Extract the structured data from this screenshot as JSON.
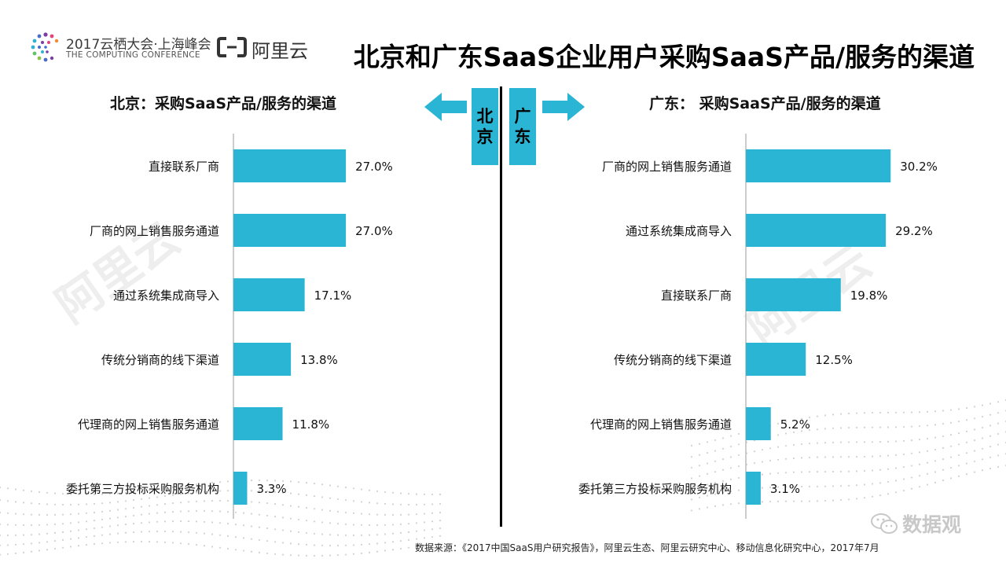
{
  "header": {
    "conference_name": "2017云栖大会·上海峰会",
    "conference_sub": "THE COMPUTING CONFERENCE",
    "brand": "阿里云",
    "title": "北京和广东SaaS企业用户采购SaaS产品/服务的渠道"
  },
  "divider": {
    "left_city": [
      "北",
      "京"
    ],
    "right_city": [
      "广",
      "东"
    ]
  },
  "colors": {
    "bar": "#29b5d3",
    "accent": "#29b5d3",
    "divider": "#000000"
  },
  "chart_data": [
    {
      "type": "bar",
      "orientation": "horizontal",
      "title": "北京：采购SaaS产品/服务的渠道",
      "categories": [
        "直接联系厂商",
        "厂商的网上销售服务通道",
        "通过系统集成商导入",
        "传统分销商的线下渠道",
        "代理商的网上销售服务通道",
        "委托第三方投标采购服务机构"
      ],
      "values": [
        27.0,
        27.0,
        17.1,
        13.8,
        11.8,
        3.3
      ],
      "labels": [
        "27.0%",
        "27.0%",
        "17.1%",
        "13.8%",
        "11.8%",
        "3.3%"
      ],
      "xlim": [
        0,
        32
      ],
      "grid": false,
      "color": "#29b5d3"
    },
    {
      "type": "bar",
      "orientation": "horizontal",
      "title": "广东：  采购SaaS产品/服务的渠道",
      "categories": [
        "厂商的网上销售服务通道",
        "通过系统集成商导入",
        "直接联系厂商",
        "传统分销商的线下渠道",
        "代理商的网上销售服务通道",
        "委托第三方投标采购服务机构"
      ],
      "values": [
        30.2,
        29.2,
        19.8,
        12.5,
        5.2,
        3.1
      ],
      "labels": [
        "30.2%",
        "29.2%",
        "19.8%",
        "12.5%",
        "5.2%",
        "3.1%"
      ],
      "xlim": [
        0,
        32
      ],
      "grid": false,
      "color": "#29b5d3"
    }
  ],
  "footer": {
    "source": "数据来源：《2017中国SaaS用户研究报告》，阿里云生态、阿里云研究中心、移动信息化研究中心，2017年7月",
    "badge": "数据观"
  },
  "icons": [
    "conference-logo-icon",
    "aliyun-logo-icon",
    "arrow-left-icon",
    "arrow-right-icon",
    "wechat-icon"
  ]
}
